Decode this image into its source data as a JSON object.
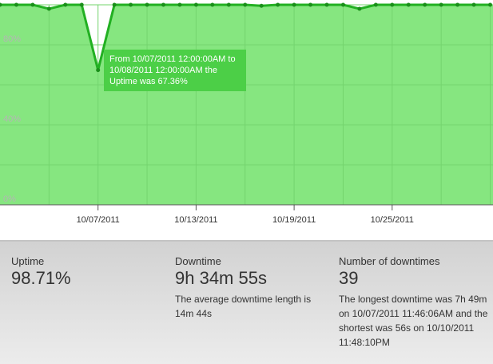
{
  "chart_data": {
    "type": "area",
    "categories": [
      null,
      null,
      null,
      null,
      null,
      null,
      "10/07/2011",
      null,
      null,
      null,
      null,
      null,
      "10/13/2011",
      null,
      null,
      null,
      null,
      null,
      "10/19/2011",
      null,
      null,
      null,
      null,
      null,
      "10/25/2011",
      null,
      null,
      null,
      null,
      null,
      null
    ],
    "series": [
      {
        "name": "Uptime",
        "color": "#22b022",
        "values": [
          100,
          100,
          100,
          98,
          100,
          100,
          67.36,
          100,
          100,
          100,
          100,
          100,
          100,
          100,
          100,
          100,
          99.5,
          100,
          100,
          100,
          100,
          100,
          98,
          100,
          100,
          100,
          100,
          100,
          100,
          100,
          100
        ]
      }
    ],
    "ylim": [
      0,
      100
    ],
    "yticks": [
      {
        "value": 0,
        "label": "0%"
      },
      {
        "value": 40,
        "label": "40%"
      },
      {
        "value": 80,
        "label": "80%"
      }
    ],
    "ygrid": [
      0,
      20,
      40,
      60,
      80,
      100
    ],
    "fill": "#86e680",
    "tooltip": "From 10/07/2011 12:00:00AM to 10/08/2011 12:00:00AM the Uptime was 67.36%"
  },
  "stats": [
    {
      "label": "Uptime",
      "value": "98.71%"
    },
    {
      "label": "Downtime",
      "value": "9h 34m 55s",
      "note": "The average downtime length is 14m 44s"
    },
    {
      "label": "Number of downtimes",
      "value": "39",
      "note": "The longest downtime was 7h 49m on 10/07/2011 11:46:06AM and the shortest was 56s on 10/10/2011 11:48:10PM"
    }
  ]
}
